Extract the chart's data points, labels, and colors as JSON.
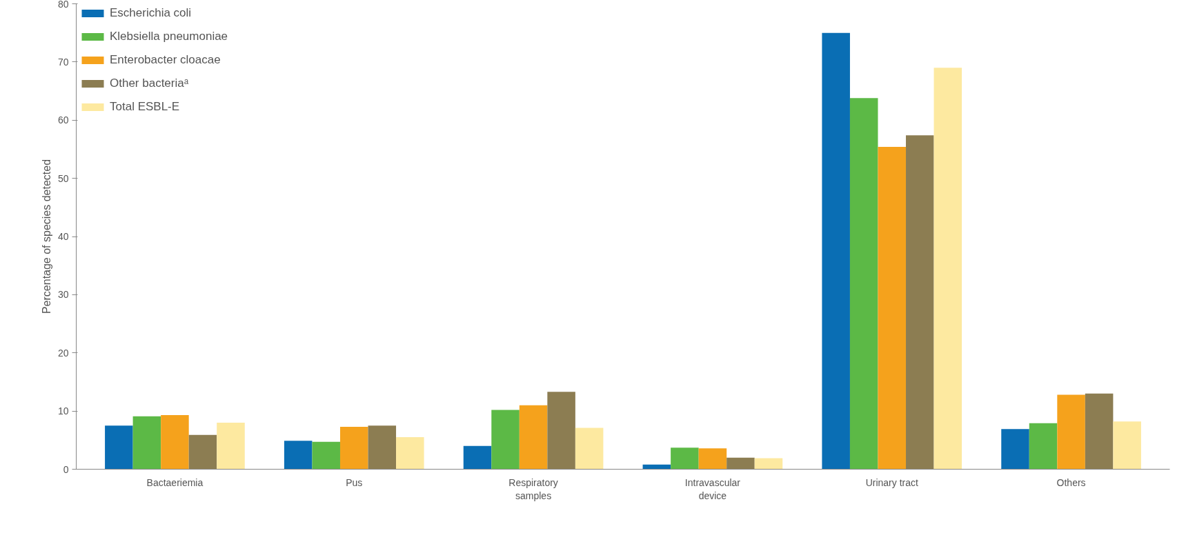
{
  "chart_data": {
    "type": "bar",
    "ylabel": "Percentage of species detected",
    "categories": [
      "Bactaeriemia",
      "Pus",
      "Respiratory samples",
      "Intravascular device",
      "Urinary tract",
      "Others"
    ],
    "series": [
      {
        "name": "Escherichia coli",
        "color": "#0a6eb4",
        "values": [
          7.5,
          4.9,
          4.0,
          0.8,
          75.0,
          6.9
        ]
      },
      {
        "name": "Klebsiella pneumoniae",
        "color": "#5cb946",
        "values": [
          9.1,
          4.7,
          10.2,
          3.7,
          63.8,
          7.9
        ]
      },
      {
        "name": "Enterobacter cloacae",
        "color": "#f5a21c",
        "values": [
          9.3,
          7.3,
          11.0,
          3.6,
          55.4,
          12.8
        ]
      },
      {
        "name": "Other bacteriaᵃ",
        "color": "#8c7d52",
        "values": [
          5.9,
          7.5,
          13.3,
          2.0,
          57.4,
          13.0
        ]
      },
      {
        "name": "Total ESBL-E",
        "color": "#fde9a0",
        "values": [
          8.0,
          5.5,
          7.1,
          1.9,
          69.0,
          8.2
        ]
      }
    ],
    "ylim": [
      0,
      80
    ],
    "yticks": [
      0,
      10,
      20,
      30,
      40,
      50,
      60,
      70,
      80
    ],
    "grid": false,
    "legend": "top left"
  }
}
